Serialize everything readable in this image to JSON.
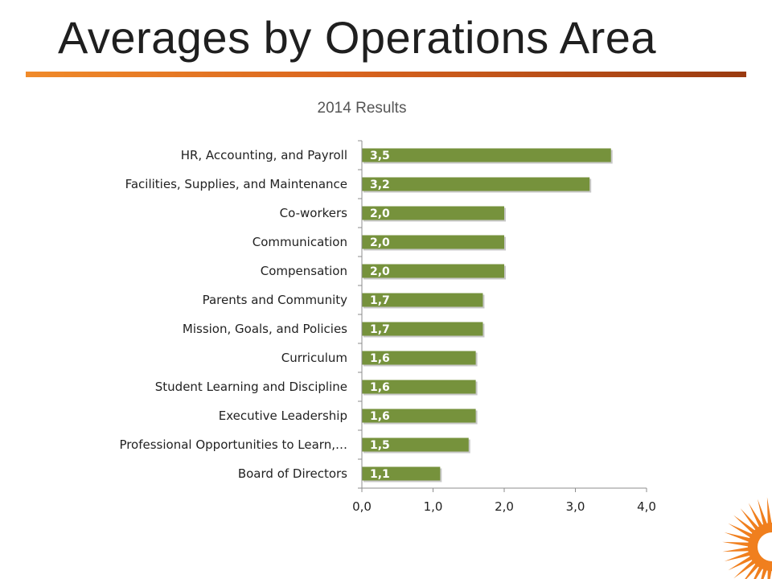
{
  "slide": {
    "title": "Averages by Operations Area"
  },
  "colors": {
    "bar": "#76923c",
    "bar_shadow": "#9a9a9a",
    "title_rule_start": "#f08a2a",
    "title_rule_end": "#9a3a10",
    "logo_accent": "#f07f1e"
  },
  "icons": {
    "corner_logo": "sunburst-logo-icon"
  },
  "chart_data": {
    "type": "bar",
    "orientation": "horizontal",
    "title": "2014 Results",
    "xlabel": "",
    "ylabel": "",
    "xlim": [
      0,
      4
    ],
    "x_ticks": [
      "0,0",
      "1,0",
      "2,0",
      "3,0",
      "4,0"
    ],
    "grid": false,
    "legend": "none",
    "categories": [
      "HR, Accounting, and Payroll",
      "Facilities, Supplies, and Maintenance",
      "Co-workers",
      "Communication",
      "Compensation",
      "Parents and Community",
      "Mission, Goals, and Policies",
      "Curriculum",
      "Student Learning and Discipline",
      "Executive Leadership",
      "Professional Opportunities to Learn,…",
      "Board of Directors"
    ],
    "values": [
      3.5,
      3.2,
      2.0,
      2.0,
      2.0,
      1.7,
      1.7,
      1.6,
      1.6,
      1.6,
      1.5,
      1.1
    ],
    "data_labels": [
      "3,5",
      "3,2",
      "2,0",
      "2,0",
      "2,0",
      "1,7",
      "1,7",
      "1,6",
      "1,6",
      "1,6",
      "1,5",
      "1,1"
    ]
  }
}
